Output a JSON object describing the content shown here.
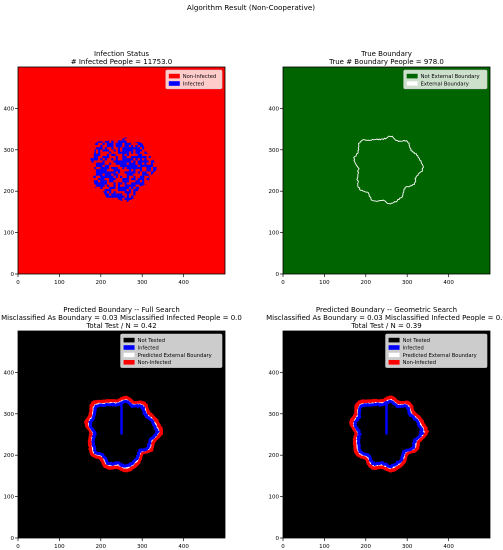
{
  "figure": {
    "suptitle": "Algorithm Result (Non-Cooperative)"
  },
  "chart_data": [
    {
      "type": "heatmap",
      "title": "Infection Status\n# Infected People = 11753.0",
      "xlim": [
        0,
        500
      ],
      "ylim": [
        0,
        500
      ],
      "xticks": [
        0,
        100,
        200,
        300,
        400
      ],
      "yticks": [
        0,
        100,
        200,
        300,
        400
      ],
      "background_color": "#ff0000",
      "legend": {
        "loc": "upper right",
        "entries": [
          {
            "label": "Non-Infected",
            "color": "#ff0000"
          },
          {
            "label": "Infected",
            "color": "#0000ff"
          }
        ]
      },
      "region": {
        "kind": "mixed",
        "center": [
          250,
          255
        ],
        "radius": 75,
        "colors": [
          "#0000ff",
          "#ff0000"
        ]
      }
    },
    {
      "type": "heatmap",
      "title": "True Boundary\nTrue # Boundary People = 978.0",
      "xlim": [
        0,
        500
      ],
      "ylim": [
        0,
        500
      ],
      "xticks": [
        0,
        100,
        200,
        300,
        400
      ],
      "yticks": [
        0,
        100,
        200,
        300,
        400
      ],
      "background_color": "#006400",
      "legend": {
        "loc": "upper right",
        "entries": [
          {
            "label": "Not External Boundary",
            "color": "#006400"
          },
          {
            "label": "External Boundary",
            "color": "#ffffff"
          }
        ]
      },
      "region": {
        "kind": "outline",
        "center": [
          250,
          255
        ],
        "radius": 78,
        "colors": [
          "#ffffff"
        ]
      }
    },
    {
      "type": "heatmap",
      "title": "Predicted Boundary -- Full Search\nMisclassified As Boundary = 0.03 Misclassified Infected People = 0.0\nTotal Test / N = 0.42",
      "xlim": [
        0,
        500
      ],
      "ylim": [
        0,
        500
      ],
      "xticks": [
        0,
        100,
        200,
        300,
        400
      ],
      "yticks": [
        0,
        100,
        200,
        300,
        400
      ],
      "background_color": "#000000",
      "legend": {
        "loc": "upper right",
        "entries": [
          {
            "label": "Not Tested",
            "color": "#000000"
          },
          {
            "label": "Infected",
            "color": "#0000ff"
          },
          {
            "label": "Predicted External Boundary",
            "color": "#ffffff"
          },
          {
            "label": "Non-Infected",
            "color": "#ff0000"
          }
        ]
      },
      "region": {
        "kind": "rings",
        "center": [
          250,
          255
        ],
        "radius": 78,
        "colors": [
          "#ff0000",
          "#ffffff",
          "#0000ff"
        ],
        "probe": {
          "x": 250,
          "y0": 250,
          "y1": 330
        }
      }
    },
    {
      "type": "heatmap",
      "title": "Predicted Boundary -- Geometric Search\nMisclassified As Boundary = 0.03 Misclassified Infected People = 0.0\nTotal Test / N = 0.39",
      "xlim": [
        0,
        500
      ],
      "ylim": [
        0,
        500
      ],
      "xticks": [
        0,
        100,
        200,
        300,
        400
      ],
      "yticks": [
        0,
        100,
        200,
        300,
        400
      ],
      "background_color": "#000000",
      "legend": {
        "loc": "upper right",
        "entries": [
          {
            "label": "Not Tested",
            "color": "#000000"
          },
          {
            "label": "Infected",
            "color": "#0000ff"
          },
          {
            "label": "Predicted External Boundary",
            "color": "#ffffff"
          },
          {
            "label": "Non-Infected",
            "color": "#ff0000"
          }
        ]
      },
      "region": {
        "kind": "rings",
        "center": [
          250,
          255
        ],
        "radius": 78,
        "colors": [
          "#ff0000",
          "#ffffff",
          "#0000ff"
        ],
        "probe": {
          "x": 250,
          "y0": 250,
          "y1": 330
        }
      }
    }
  ]
}
